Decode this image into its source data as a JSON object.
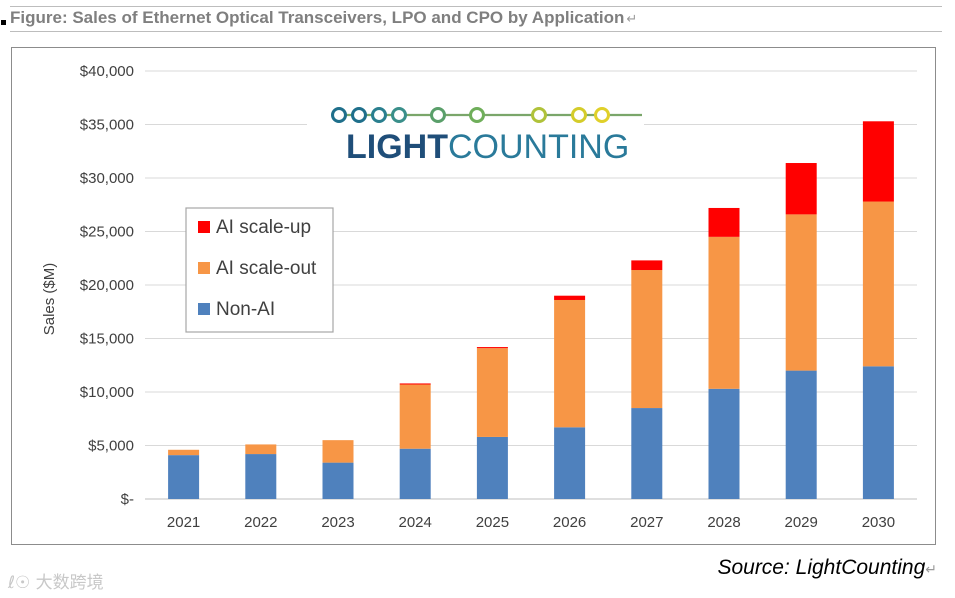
{
  "figure": {
    "title": "Figure: Sales of Ethernet Optical Transceivers, LPO and CPO by Application",
    "return_mark": "↵",
    "source": "Source: LightCounting",
    "watermark": "大数跨境"
  },
  "logo": {
    "part1": "LIGHT",
    "part2": "COUNTING"
  },
  "colors": {
    "non_ai": "#4f81bd",
    "scale_out": "#f79646",
    "scale_up": "#ff0000",
    "grid": "#d9d9d9",
    "axis_text": "#404040",
    "logo_dark": "#1f4e79",
    "logo_light": "#2a7a9a"
  },
  "chart_data": {
    "type": "bar",
    "stacked": true,
    "categories": [
      "2021",
      "2022",
      "2023",
      "2024",
      "2025",
      "2026",
      "2027",
      "2028",
      "2029",
      "2030"
    ],
    "series": [
      {
        "name": "Non-AI",
        "values": [
          4100,
          4200,
          3400,
          4700,
          5800,
          6700,
          8500,
          10300,
          12000,
          12400
        ]
      },
      {
        "name": "AI scale-out",
        "values": [
          500,
          900,
          2100,
          6000,
          8300,
          11900,
          12900,
          14200,
          14600,
          15400
        ]
      },
      {
        "name": "AI scale-up",
        "values": [
          0,
          0,
          0,
          100,
          100,
          400,
          900,
          2700,
          4800,
          7500
        ]
      }
    ],
    "legend_order": [
      "AI scale-up",
      "AI scale-out",
      "Non-AI"
    ],
    "legend_position": "upper-left",
    "ylabel": "Sales ($M)",
    "ylim": [
      0,
      40000
    ],
    "yticks": [
      0,
      5000,
      10000,
      15000,
      20000,
      25000,
      30000,
      35000,
      40000
    ],
    "ytick_labels": [
      "$-",
      "$5,000",
      "$10,000",
      "$15,000",
      "$20,000",
      "$25,000",
      "$30,000",
      "$35,000",
      "$40,000"
    ],
    "grid": true
  }
}
